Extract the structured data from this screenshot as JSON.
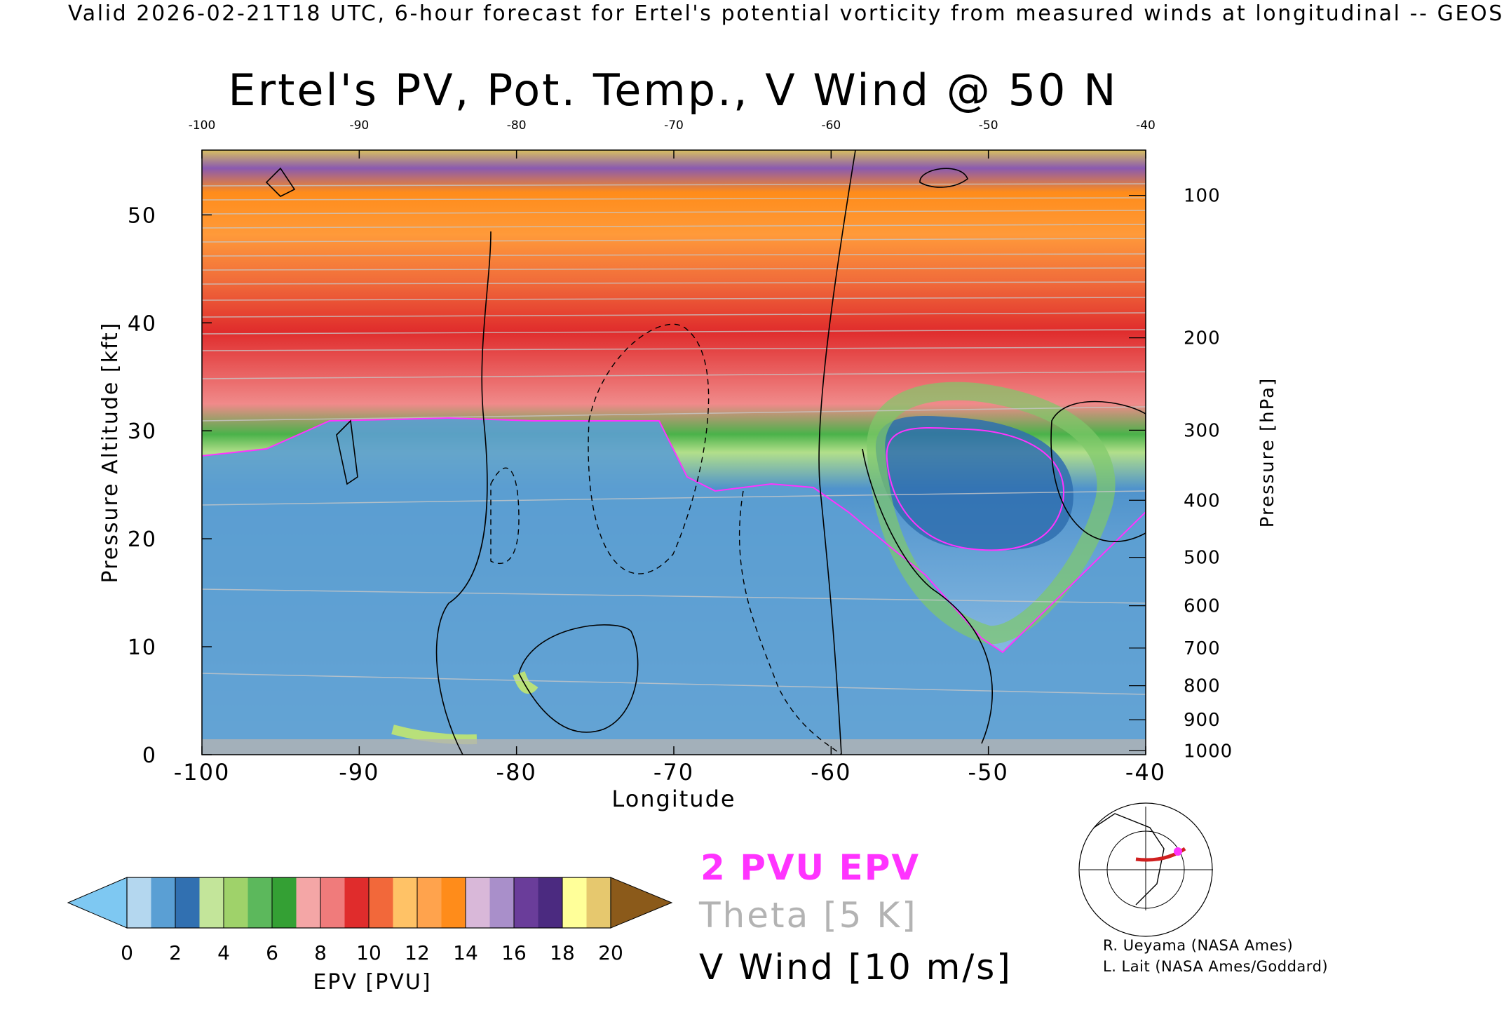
{
  "header": {
    "validity": "Valid 2026-02-21T18 UTC, 6-hour forecast for Ertel's potential vorticity from measured winds at longitudinal -- GEOS"
  },
  "chart_data": {
    "type": "heatmap",
    "title": "Ertel's PV, Pot. Temp., V Wind @ 50 N",
    "xlabel": "Longitude",
    "ylabel": "Pressure Altitude [kft]",
    "y2label": "Pressure [hPa]",
    "x_ticks": [
      "-100",
      "-90",
      "-80",
      "-70",
      "-60",
      "-50",
      "-40"
    ],
    "x_tick_values": [
      -100,
      -90,
      -80,
      -70,
      -60,
      -50,
      -40
    ],
    "x_top_ticks": [
      "-100",
      "-90",
      "-80",
      "-70",
      "-60",
      "-50",
      "-40"
    ],
    "y_ticks": [
      "0",
      "10",
      "20",
      "30",
      "40",
      "50"
    ],
    "y_tick_values": [
      0,
      10,
      20,
      30,
      40,
      50
    ],
    "pressure_ticks": [
      "100",
      "200",
      "300",
      "400",
      "500",
      "600",
      "700",
      "800",
      "900",
      "1000"
    ],
    "pressure_tick_values": [
      100,
      200,
      300,
      400,
      500,
      600,
      700,
      800,
      900,
      1000
    ],
    "xlim": [
      -100,
      -40
    ],
    "ylim": [
      0,
      56
    ],
    "colorbar": {
      "label": "EPV [PVU]",
      "ticks": [
        "0",
        "2",
        "4",
        "6",
        "8",
        "10",
        "12",
        "14",
        "16",
        "18",
        "20"
      ],
      "tick_values": [
        0,
        2,
        4,
        6,
        8,
        10,
        12,
        14,
        16,
        18,
        20
      ],
      "below_color": "#7ec8f2",
      "above_color": "#8b5a1a",
      "colors": [
        "#b4d7ef",
        "#5a9fd4",
        "#3170b1",
        "#c3e59a",
        "#9fd26a",
        "#5cb85c",
        "#34a034",
        "#f4a6a6",
        "#f07b7b",
        "#e02c2c",
        "#f2683a",
        "#ffc266",
        "#ffa34d",
        "#ff8c1a",
        "#d9b8d9",
        "#a98fca",
        "#6a3d9a",
        "#4b2a80",
        "#ffff99",
        "#e6c86e"
      ]
    },
    "legend": {
      "pv_label": "2 PVU EPV",
      "theta_label": "Theta [5 K]",
      "wind_label": "V Wind [10 m/s]"
    },
    "colors": {
      "pv_contour": "#ff33ff",
      "theta": "#b3b3b3",
      "wind": "#000000",
      "terrain": "#b3b3b3"
    },
    "notes": [
      "R. Ueyama (NASA Ames)",
      "L. Lait (NASA Ames/Goddard)"
    ]
  }
}
